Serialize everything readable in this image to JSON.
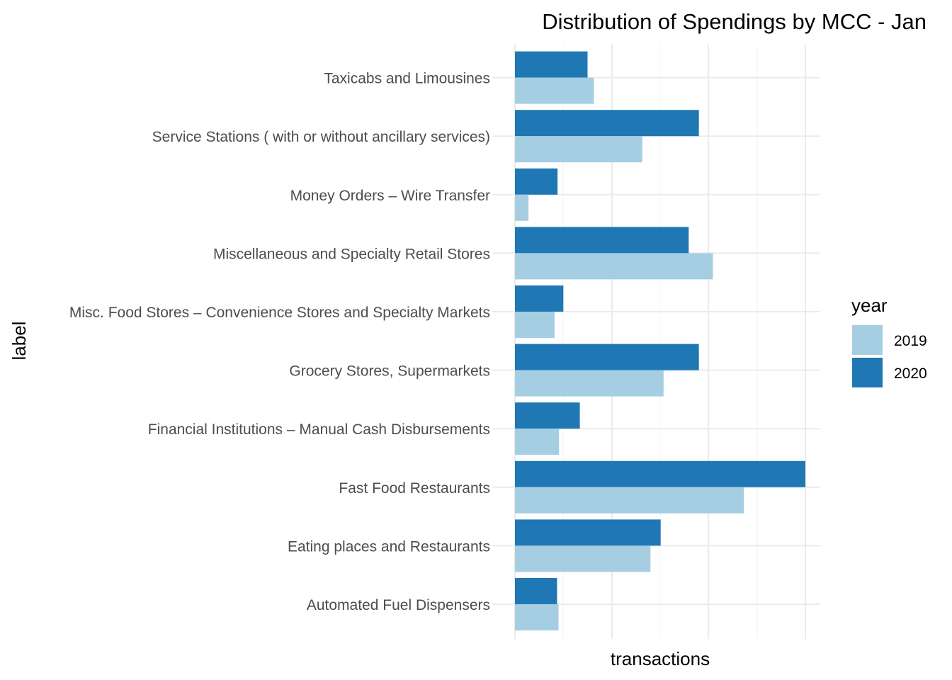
{
  "chart_data": {
    "type": "bar",
    "orientation": "horizontal",
    "title": "Distribution of Spendings by MCC - Jan",
    "xlabel": "transactions",
    "ylabel": "label",
    "x_tick_labels_shown": false,
    "xlim": [
      0,
      63
    ],
    "grid": true,
    "legend": {
      "title": "year",
      "position": "right"
    },
    "categories": [
      "Automated Fuel Dispensers",
      "Eating places and Restaurants",
      "Fast Food Restaurants",
      "Financial Institutions – Manual Cash Disbursements",
      "Grocery Stores, Supermarkets",
      "Misc. Food Stores – Convenience Stores and Specialty Markets",
      "Miscellaneous and Specialty Retail Stores",
      "Money Orders – Wire Transfer",
      "Service Stations ( with or without ancillary services)",
      "Taxicabs and Limousines"
    ],
    "series": [
      {
        "name": "2019",
        "color": "#a6cee3",
        "values": [
          9.0,
          28.0,
          47.3,
          9.1,
          30.7,
          8.2,
          40.9,
          2.8,
          26.3,
          16.3
        ]
      },
      {
        "name": "2020",
        "color": "#1f78b4",
        "values": [
          8.7,
          30.1,
          60.0,
          13.4,
          38.0,
          10.0,
          35.9,
          8.8,
          38.0,
          15.0
        ]
      }
    ]
  }
}
